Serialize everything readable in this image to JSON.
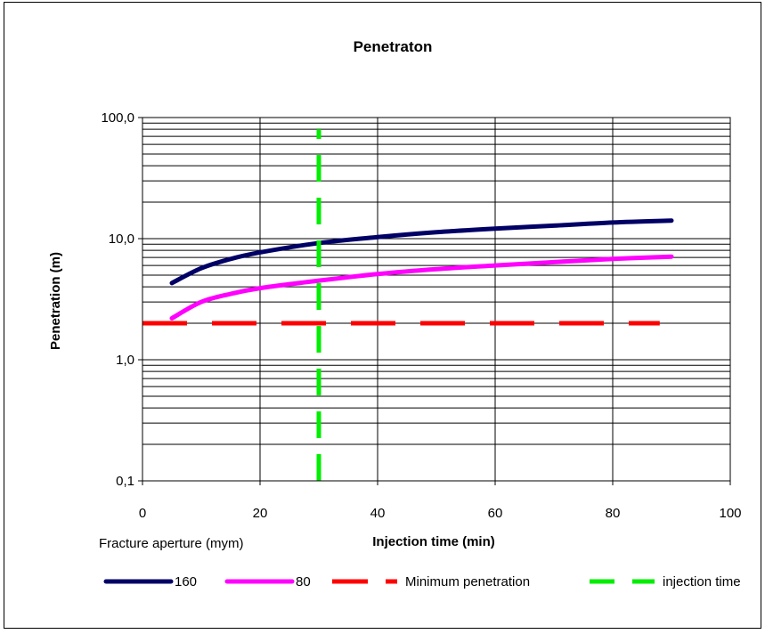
{
  "chart_data": {
    "type": "line",
    "title": "Penetraton",
    "xlabel": "Injection time (min)",
    "ylabel": "Penetration (m)",
    "xlim": [
      0,
      100
    ],
    "ylim": [
      0.1,
      100
    ],
    "yscale": "log",
    "grid": true,
    "x_ticks": [
      0,
      20,
      40,
      60,
      80,
      100
    ],
    "x_tick_labels": [
      "0",
      "20",
      "40",
      "60",
      "80",
      "100"
    ],
    "y_ticks": [
      0.1,
      1,
      10,
      100
    ],
    "y_tick_labels": [
      "0,1",
      "1,0",
      "10,0",
      "100,0"
    ],
    "legend_title": "Fracture aperture (mym)",
    "legend_position": "bottom",
    "series": [
      {
        "name": "160",
        "color": "#000066",
        "style": "solid",
        "x": [
          5,
          10,
          15,
          20,
          30,
          40,
          50,
          60,
          70,
          80,
          90
        ],
        "y": [
          4.3,
          5.7,
          6.8,
          7.7,
          9.2,
          10.3,
          11.3,
          12.1,
          12.8,
          13.6,
          14.1
        ]
      },
      {
        "name": "80",
        "color": "#ff00ff",
        "style": "solid",
        "x": [
          5,
          10,
          15,
          20,
          30,
          40,
          50,
          60,
          70,
          80,
          90
        ],
        "y": [
          2.2,
          3.0,
          3.5,
          3.9,
          4.5,
          5.1,
          5.6,
          6.0,
          6.4,
          6.8,
          7.1
        ]
      },
      {
        "name": "Minimum penetration",
        "color": "#ff0000",
        "style": "dashed",
        "x": [
          0,
          88
        ],
        "y": [
          2,
          2
        ]
      },
      {
        "name": "injection time",
        "color": "#00ee00",
        "style": "dashed",
        "x": [
          30,
          30
        ],
        "y": [
          0.1,
          80
        ]
      }
    ]
  }
}
